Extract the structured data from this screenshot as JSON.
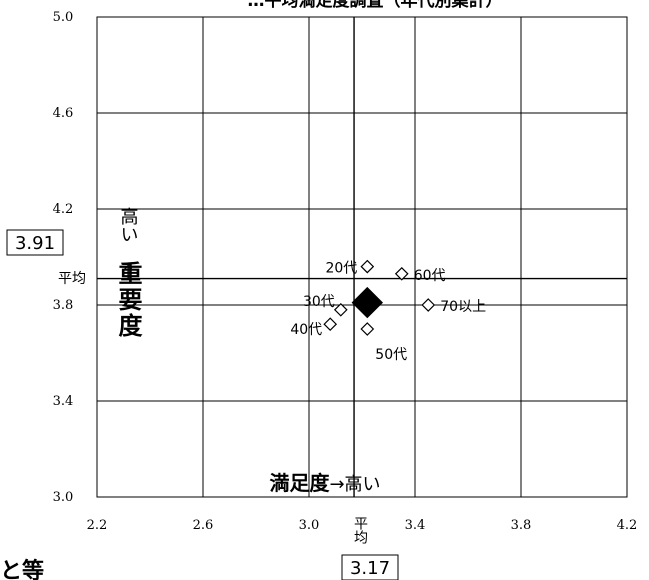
{
  "chart_data": {
    "type": "scatter",
    "title": "…平均満足度調査（年代別集計）",
    "xlim": [
      2.2,
      4.2
    ],
    "ylim": [
      3.0,
      5.0
    ],
    "x_ticks": [
      "2.2",
      "2.6",
      "3.0",
      "3.4",
      "3.8",
      "4.2"
    ],
    "y_ticks": [
      "3.0",
      "3.4",
      "3.8",
      "4.2",
      "4.6",
      "5.0"
    ],
    "grid": true,
    "average": {
      "x": 3.17,
      "y": 3.91,
      "x_label": "3.17",
      "y_label": "3.91",
      "tag_x": "平均",
      "tag_y": "平均"
    },
    "axis_text": {
      "x_title": "満足度",
      "x_high": "→高い",
      "y_high": "高い",
      "y_arrow": "↑",
      "y_title": "重要度"
    },
    "overall": {
      "x": 3.22,
      "y": 3.81
    },
    "points": [
      {
        "label": "20代",
        "x": 3.22,
        "y": 3.96
      },
      {
        "label": "60代",
        "x": 3.35,
        "y": 3.93
      },
      {
        "label": "30代",
        "x": 3.12,
        "y": 3.78
      },
      {
        "label": "70以上",
        "x": 3.45,
        "y": 3.8
      },
      {
        "label": "40代",
        "x": 3.08,
        "y": 3.72
      },
      {
        "label": "50代",
        "x": 3.22,
        "y": 3.7
      }
    ]
  },
  "footer_text": "と等"
}
